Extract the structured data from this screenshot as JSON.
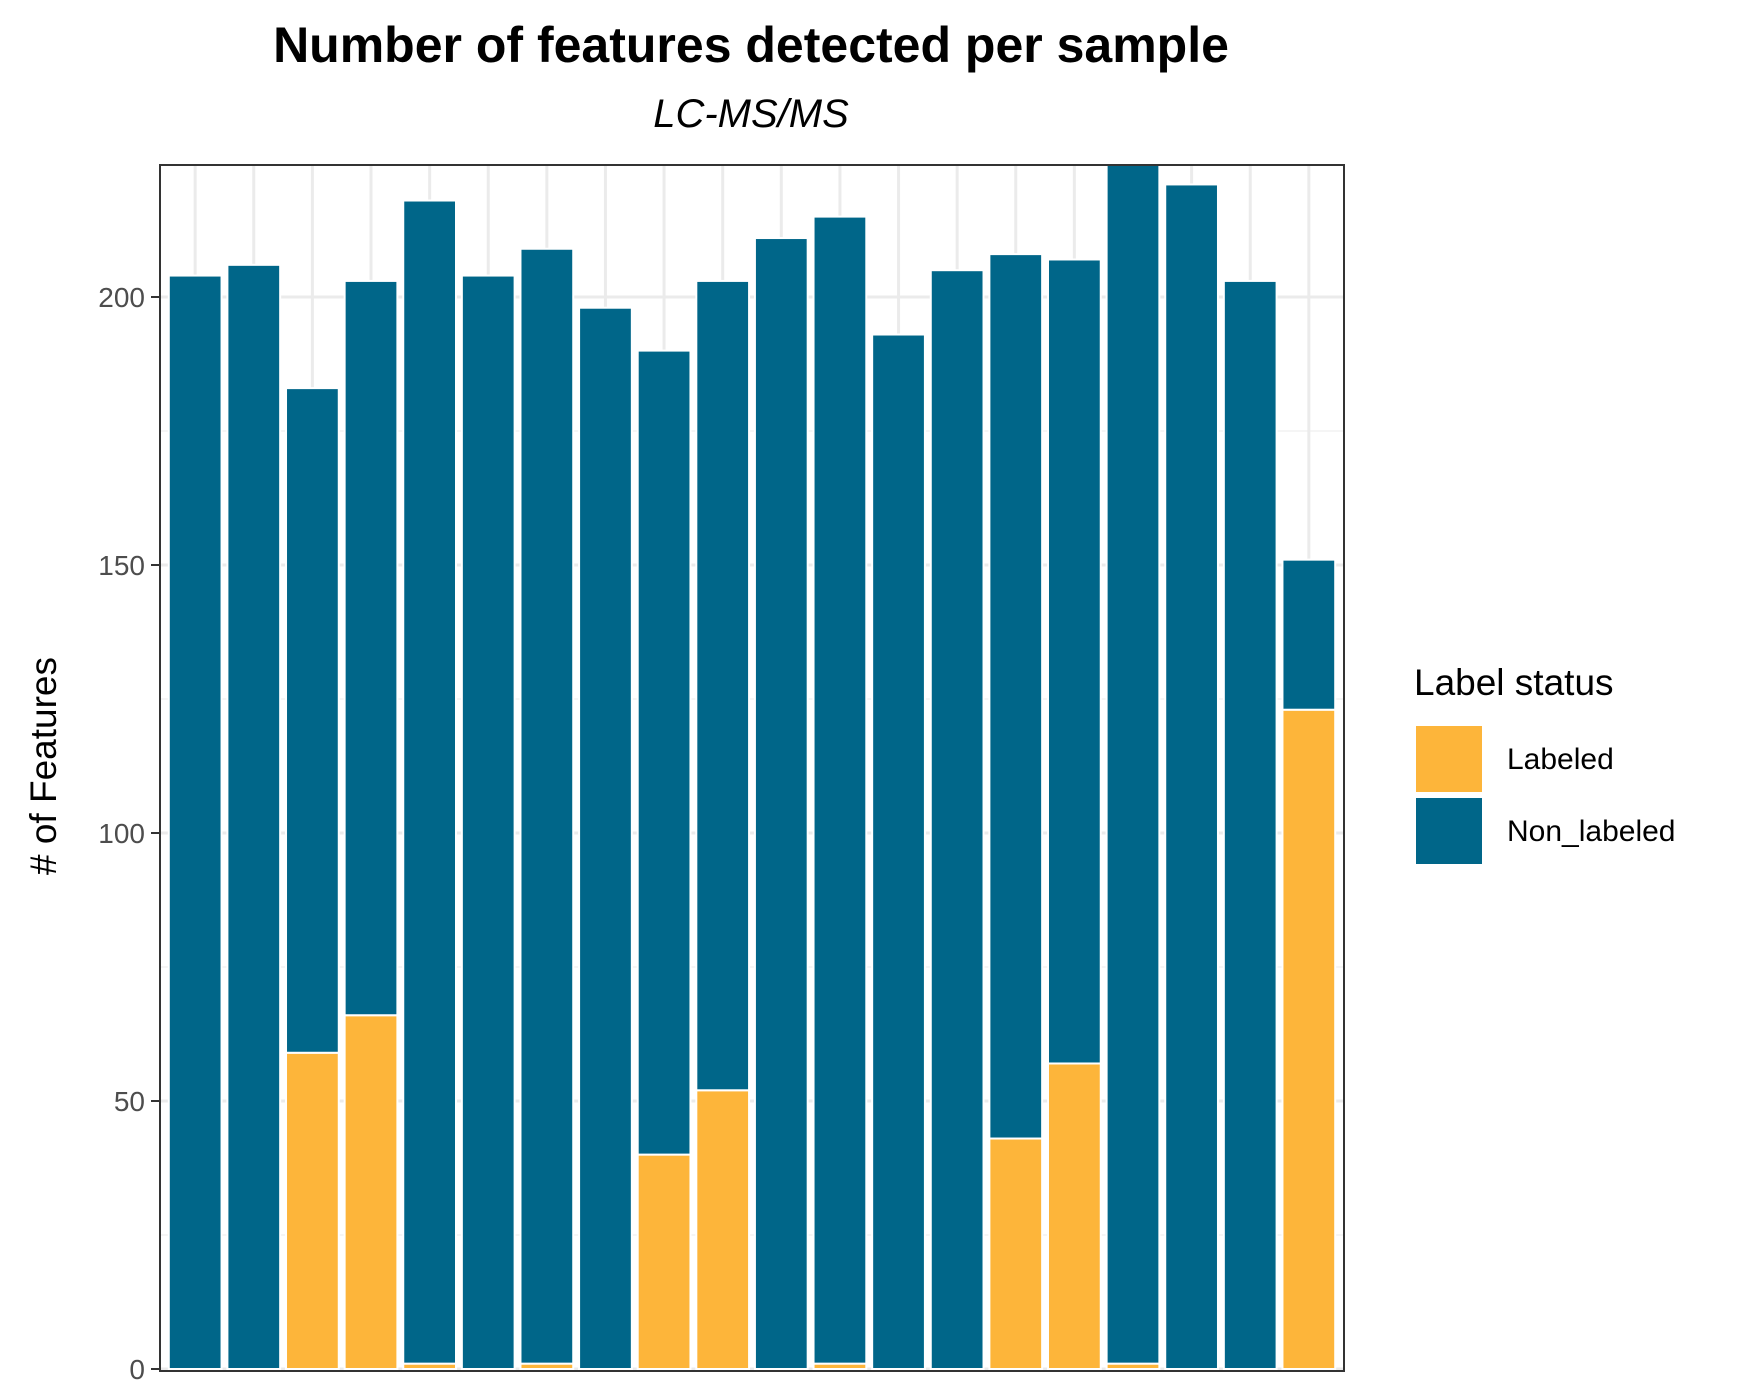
{
  "chart_data": {
    "type": "bar",
    "stacked": true,
    "title": "Number of features detected per sample",
    "subtitle": "LC-MS/MS",
    "xlabel": "",
    "ylabel": "# of Features",
    "ylim": [
      0,
      225
    ],
    "yticks": [
      0,
      50,
      100,
      150,
      200
    ],
    "grid": true,
    "legend": {
      "title": "Label status",
      "position": "right",
      "entries": [
        {
          "name": "Labeled",
          "color": "#FDB53A"
        },
        {
          "name": "Non_labeled",
          "color": "#006689"
        }
      ]
    },
    "series": [
      {
        "name": "Labeled",
        "color": "#FDB53A",
        "values": [
          0,
          0,
          59,
          66,
          1,
          0,
          1,
          0,
          40,
          52,
          0,
          1,
          0,
          0,
          43,
          57,
          1,
          0,
          0,
          123
        ]
      },
      {
        "name": "Non_labeled",
        "color": "#006689",
        "values": [
          204,
          206,
          124,
          137,
          217,
          204,
          208,
          198,
          150,
          151,
          211,
          214,
          193,
          205,
          165,
          150,
          224,
          221,
          203,
          28
        ]
      }
    ]
  }
}
